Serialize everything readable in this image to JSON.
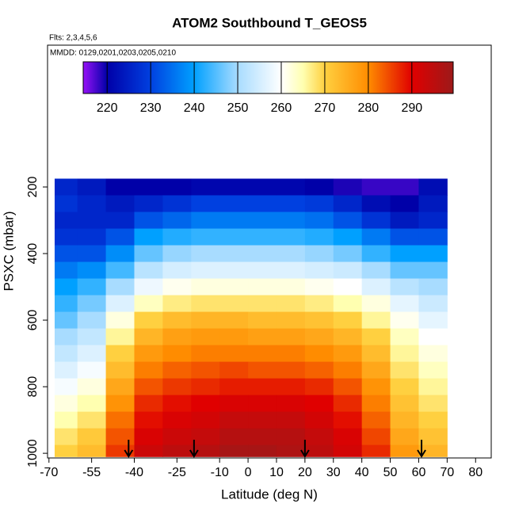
{
  "chart_data": {
    "type": "heatmap",
    "title": "ATOM2 Southbound T_GEOS5",
    "flights_note": "Flts: 2,3,4,5,6",
    "dates_note": "MMDD: 0129,0201,0203,0205,0210",
    "x_label": "Latitude (deg N)",
    "y_label": "PSXC (mbar)",
    "xlim": [
      -70.5,
      85.5
    ],
    "ylim": [
      1014,
      -226
    ],
    "xticks": [
      -70,
      -55,
      -40,
      -25,
      -10,
      0,
      10,
      20,
      30,
      40,
      50,
      60,
      70,
      80
    ],
    "yticks": [
      200,
      400,
      600,
      800,
      1000
    ],
    "x_edges": [
      -68,
      -60,
      -50,
      -40,
      -30,
      -20,
      -10,
      0,
      10,
      20,
      30,
      40,
      50,
      60,
      70
    ],
    "y_edges": [
      175,
      225,
      275,
      325,
      375,
      425,
      475,
      525,
      575,
      625,
      675,
      725,
      775,
      825,
      875,
      925,
      975,
      1010
    ],
    "z": [
      [
        226,
        224,
        220,
        220,
        220,
        221,
        221,
        221,
        221,
        220,
        219,
        218,
        218,
        222
      ],
      [
        228,
        226,
        224,
        226,
        228,
        230,
        230,
        230,
        230,
        229,
        226,
        222,
        220,
        224
      ],
      [
        226,
        226,
        226,
        232,
        234,
        236,
        236,
        236,
        236,
        235,
        232,
        228,
        224,
        226
      ],
      [
        228,
        228,
        232,
        240,
        242,
        243,
        243,
        243,
        243,
        242,
        240,
        236,
        232,
        232
      ],
      [
        232,
        232,
        238,
        246,
        249,
        250,
        250,
        250,
        250,
        249,
        247,
        243,
        240,
        240
      ],
      [
        236,
        238,
        244,
        252,
        255,
        256,
        256,
        256,
        256,
        255,
        254,
        250,
        246,
        246
      ],
      [
        240,
        243,
        250,
        258,
        261,
        262,
        262,
        262,
        262,
        261,
        260,
        256,
        252,
        250
      ],
      [
        243,
        247,
        256,
        264,
        267,
        268,
        268,
        268,
        268,
        267,
        265,
        262,
        257,
        254
      ],
      [
        246,
        250,
        262,
        270,
        273,
        274,
        274,
        273,
        273,
        272,
        270,
        266,
        261,
        257
      ],
      [
        250,
        253,
        266,
        274,
        277,
        278,
        278,
        277,
        277,
        276,
        274,
        270,
        264,
        260
      ],
      [
        253,
        256,
        270,
        278,
        280,
        281,
        281,
        281,
        281,
        280,
        278,
        273,
        266,
        262
      ],
      [
        256,
        259,
        273,
        281,
        283,
        284,
        285,
        284,
        284,
        283,
        281,
        276,
        268,
        264
      ],
      [
        259,
        262,
        276,
        284,
        286,
        287,
        288,
        288,
        288,
        287,
        284,
        279,
        270,
        266
      ],
      [
        262,
        265,
        279,
        287,
        289,
        290,
        291,
        291,
        291,
        290,
        287,
        281,
        272,
        268
      ],
      [
        265,
        268,
        282,
        289,
        291,
        292,
        294,
        294,
        294,
        292,
        289,
        283,
        274,
        270
      ],
      [
        268,
        271,
        284,
        291,
        293,
        294,
        296,
        296,
        296,
        294,
        291,
        285,
        276,
        272
      ],
      [
        270,
        273,
        286,
        293,
        295,
        296,
        298,
        298,
        297,
        295,
        292,
        287,
        278,
        274
      ]
    ],
    "colorscale": [
      [
        215,
        "#8a10f0"
      ],
      [
        220,
        "#0000a8"
      ],
      [
        230,
        "#0040e0"
      ],
      [
        240,
        "#00a0ff"
      ],
      [
        250,
        "#a8dcff"
      ],
      [
        260,
        "#ffffff"
      ],
      [
        265,
        "#ffffb0"
      ],
      [
        270,
        "#ffd040"
      ],
      [
        280,
        "#ff8c00"
      ],
      [
        290,
        "#e00000"
      ],
      [
        299,
        "#a01818"
      ]
    ],
    "cblim": [
      214.5,
      299.5
    ],
    "cbticks": [
      220,
      230,
      240,
      250,
      260,
      270,
      280,
      290
    ],
    "arrows": [
      -42,
      -19,
      20,
      61
    ]
  }
}
